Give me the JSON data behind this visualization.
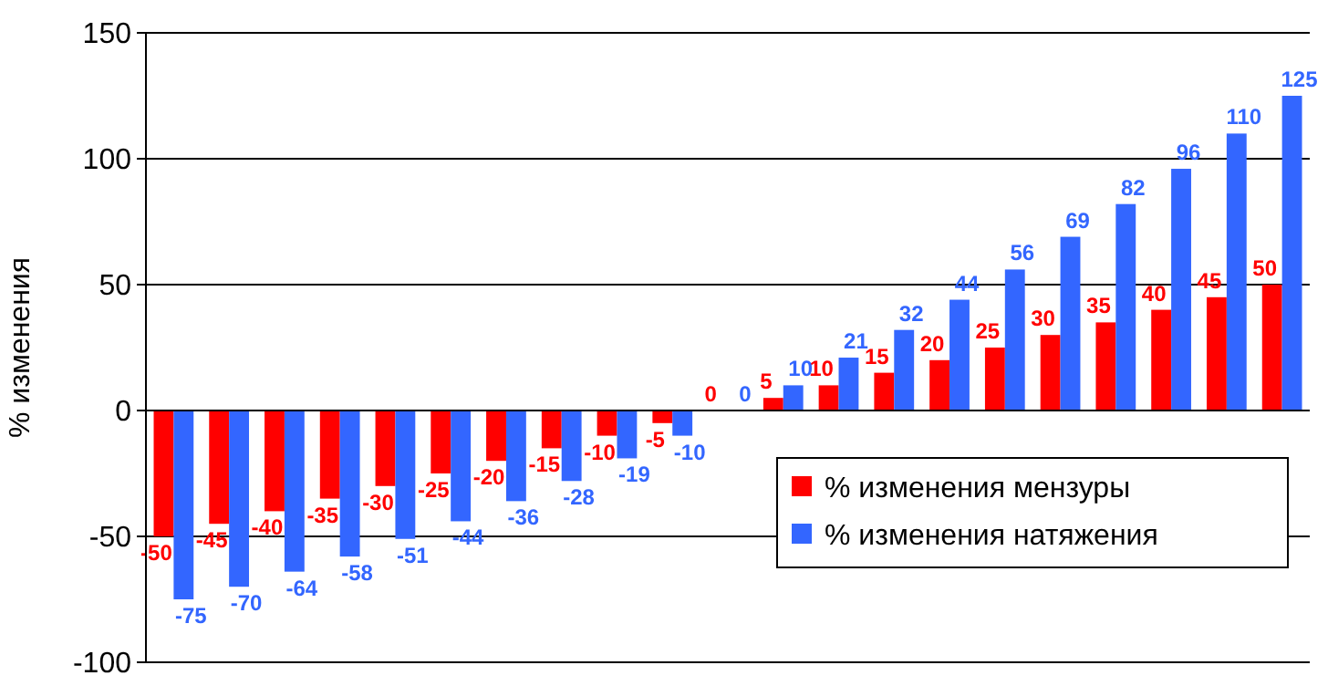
{
  "chart_data": {
    "type": "bar",
    "ylabel": "% изменения",
    "categories": [
      null,
      null,
      null,
      null,
      null,
      null,
      null,
      null,
      null,
      null,
      null,
      null,
      null,
      null,
      null,
      null,
      null,
      null,
      null,
      null,
      null
    ],
    "series": [
      {
        "name": "% изменения мензуры",
        "color": "#ff0000",
        "values": [
          -50,
          -45,
          -40,
          -35,
          -30,
          -25,
          -20,
          -15,
          -10,
          -5,
          0,
          5,
          10,
          15,
          20,
          25,
          30,
          35,
          40,
          45,
          50
        ]
      },
      {
        "name": "% изменения натяжения",
        "color": "#3366ff",
        "values": [
          -75,
          -70,
          -64,
          -58,
          -51,
          -44,
          -36,
          -28,
          -19,
          -10,
          0,
          10,
          21,
          32,
          44,
          56,
          69,
          82,
          96,
          110,
          125
        ]
      }
    ],
    "ylim": [
      -100,
      150
    ],
    "yticks": [
      -100,
      -50,
      0,
      50,
      100,
      150
    ],
    "grid": "y",
    "legend": "bottom right",
    "data_labels": true
  }
}
